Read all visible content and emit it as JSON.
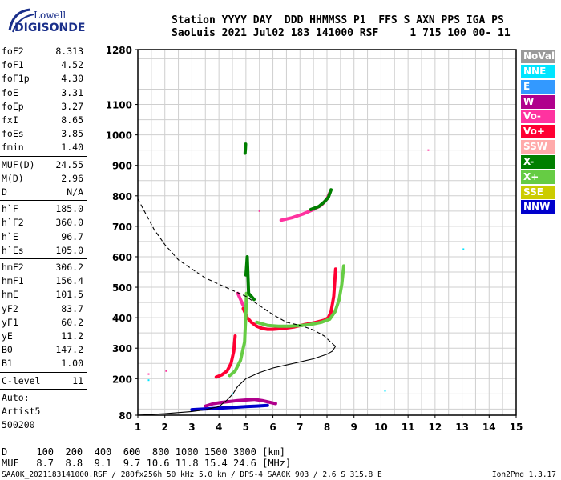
{
  "logo": {
    "line1": "Lowell",
    "line2": "DIGISONDE"
  },
  "header": {
    "line1": "Station YYYY DAY  DDD HHMMSS P1  FFS S AXN PPS IGA PS",
    "line2": "SaoLuis 2021 Jul02 183 141000 RSF     1 715 100 00- 11"
  },
  "params": [
    {
      "label": "foF2",
      "value": "8.313"
    },
    {
      "label": "foF1",
      "value": "4.52"
    },
    {
      "label": "foF1p",
      "value": "4.30"
    },
    {
      "label": "foE",
      "value": "3.31"
    },
    {
      "label": "foEp",
      "value": "3.27"
    },
    {
      "label": "fxI",
      "value": "8.65"
    },
    {
      "label": "foEs",
      "value": "3.85"
    },
    {
      "label": "fmin",
      "value": "1.40"
    },
    {
      "label": "MUF(D)",
      "value": "24.55"
    },
    {
      "label": "M(D)",
      "value": "2.96"
    },
    {
      "label": "D",
      "value": "N/A"
    },
    {
      "label": "h`F",
      "value": "185.0"
    },
    {
      "label": "h`F2",
      "value": "360.0"
    },
    {
      "label": "h`E",
      "value": "96.7"
    },
    {
      "label": "h`Es",
      "value": "105.0"
    },
    {
      "label": "hmF2",
      "value": "306.2"
    },
    {
      "label": "hmF1",
      "value": "156.4"
    },
    {
      "label": "hmE",
      "value": "101.5"
    },
    {
      "label": "yF2",
      "value": "83.7"
    },
    {
      "label": "yF1",
      "value": "60.2"
    },
    {
      "label": "yE",
      "value": "11.2"
    },
    {
      "label": "B0",
      "value": "147.2"
    },
    {
      "label": "B1",
      "value": "1.00"
    },
    {
      "label": "C-level",
      "value": "11"
    },
    {
      "label": "Auto:",
      "value": ""
    },
    {
      "label": "Artist5",
      "value": ""
    },
    {
      "label": "500200",
      "value": ""
    }
  ],
  "legend": [
    {
      "label": "NoVal",
      "color": "#9a9a9a"
    },
    {
      "label": "NNE",
      "color": "#00e5ff"
    },
    {
      "label": "E",
      "color": "#3399ff"
    },
    {
      "label": "W",
      "color": "#b0008c"
    },
    {
      "label": "Vo-",
      "color": "#ff33a0"
    },
    {
      "label": "Vo+",
      "color": "#ff0033"
    },
    {
      "label": "SSW",
      "color": "#ffaaaa"
    },
    {
      "label": "X-",
      "color": "#007f00"
    },
    {
      "label": "X+",
      "color": "#66cc44"
    },
    {
      "label": "SSE",
      "color": "#cccc00"
    },
    {
      "label": "NNW",
      "color": "#0000cc"
    }
  ],
  "bottom": {
    "line1": "D     100  200  400  600  800 1000 1500 3000 [km]",
    "line2": "MUF   8.7  8.8  9.1  9.7 10.6 11.8 15.4 24.6 [MHz]"
  },
  "footer": "SAA0K_2021183141000.RSF / 280fx256h 50 kHz 5.0 km / DPS-4 SAA0K 903 / 2.6 S 315.8 E",
  "version": "Ion2Png 1.3.17",
  "chart_data": {
    "type": "scatter",
    "xlim": [
      1,
      15
    ],
    "ylim": [
      80,
      1280
    ],
    "x_ticks": [
      1,
      2,
      3,
      4,
      5,
      6,
      7,
      8,
      9,
      10,
      11,
      12,
      13,
      14,
      15
    ],
    "y_ticks": [
      80,
      200,
      300,
      400,
      500,
      600,
      700,
      800,
      900,
      1000,
      1100,
      1280
    ],
    "grid": true,
    "series": [
      {
        "color": "#ff0033",
        "style": "trace",
        "x": [
          4.9,
          5.05,
          5.2,
          5.4,
          5.6,
          5.8,
          6.0,
          6.4,
          6.8,
          7.2,
          7.6,
          7.9,
          8.05,
          8.15,
          8.25,
          8.32
        ],
        "y": [
          430,
          400,
          385,
          372,
          365,
          362,
          362,
          365,
          370,
          378,
          385,
          392,
          400,
          420,
          470,
          560
        ]
      },
      {
        "color": "#ff0033",
        "style": "trace",
        "x": [
          3.9,
          4.1,
          4.3,
          4.45,
          4.55,
          4.6
        ],
        "y": [
          205,
          212,
          225,
          250,
          290,
          340
        ]
      },
      {
        "color": "#ff33a0",
        "style": "trace",
        "x": [
          4.7,
          4.75,
          4.8,
          4.85,
          4.9
        ],
        "y": [
          480,
          470,
          460,
          450,
          440
        ]
      },
      {
        "color": "#66cc44",
        "style": "trace",
        "x": [
          5.4,
          5.8,
          6.2,
          6.6,
          7.0,
          7.4,
          7.8,
          8.1,
          8.3,
          8.45,
          8.55,
          8.62
        ],
        "y": [
          385,
          375,
          372,
          372,
          374,
          378,
          385,
          395,
          420,
          460,
          510,
          570
        ]
      },
      {
        "color": "#66cc44",
        "style": "trace",
        "x": [
          4.4,
          4.6,
          4.8,
          4.95,
          5.0,
          5.02
        ],
        "y": [
          210,
          225,
          260,
          320,
          420,
          480
        ]
      },
      {
        "color": "#ff33a0",
        "style": "trace",
        "x": [
          6.3,
          6.7,
          7.1,
          7.5,
          7.8,
          8.0,
          8.1
        ],
        "y": [
          720,
          728,
          740,
          755,
          770,
          790,
          810
        ]
      },
      {
        "color": "#007f00",
        "style": "trace",
        "x": [
          7.4,
          7.7,
          7.9,
          8.05,
          8.15
        ],
        "y": [
          755,
          765,
          780,
          795,
          820
        ]
      },
      {
        "color": "#007f00",
        "style": "trace",
        "x": [
          5.0,
          5.02,
          5.05,
          5.1,
          5.2,
          5.3
        ],
        "y": [
          540,
          560,
          600,
          480,
          470,
          460
        ]
      },
      {
        "color": "#007f00",
        "style": "trace",
        "x": [
          4.97,
          4.98,
          4.99
        ],
        "y": [
          940,
          955,
          970
        ]
      },
      {
        "color": "#b0008c",
        "style": "trace",
        "x": [
          3.5,
          3.8,
          4.1,
          4.4,
          4.7,
          5.0,
          5.3,
          5.6,
          5.9,
          6.1
        ],
        "y": [
          110,
          118,
          122,
          125,
          128,
          130,
          132,
          128,
          122,
          118
        ]
      },
      {
        "color": "#0000cc",
        "style": "trace",
        "x": [
          3.0,
          3.4,
          3.8,
          4.2,
          4.6,
          5.0,
          5.4,
          5.8
        ],
        "y": [
          98,
          100,
          102,
          104,
          106,
          108,
          110,
          112
        ]
      },
      {
        "color": "#000000",
        "style": "dashed",
        "x": [
          1.0,
          1.3,
          1.6,
          2.0,
          2.5,
          3.0,
          3.5,
          4.0,
          4.5,
          5.0,
          5.5,
          6.0,
          6.5,
          7.0,
          7.5,
          7.9,
          8.2,
          8.313
        ],
        "y": [
          790,
          740,
          690,
          640,
          590,
          560,
          530,
          510,
          490,
          470,
          440,
          410,
          385,
          375,
          360,
          340,
          315,
          306
        ]
      },
      {
        "color": "#000000",
        "style": "solid",
        "x": [
          1.0,
          2.0,
          3.0,
          3.5,
          4.0,
          4.3,
          4.52,
          4.7,
          5.0,
          5.5,
          6.0,
          6.5,
          7.0,
          7.5,
          8.0,
          8.2,
          8.313
        ],
        "y": [
          80,
          85,
          92,
          98,
          108,
          130,
          150,
          175,
          200,
          220,
          235,
          245,
          255,
          265,
          280,
          290,
          306
        ]
      },
      {
        "color": "#ff33a0",
        "style": "dots",
        "x": [
          1.4,
          2.05,
          5.5,
          11.75
        ],
        "y": [
          215,
          225,
          750,
          950
        ]
      },
      {
        "color": "#00e5ff",
        "style": "dots",
        "x": [
          1.4,
          10.15,
          13.05,
          4.5
        ],
        "y": [
          195,
          160,
          625,
          150
        ]
      }
    ]
  }
}
